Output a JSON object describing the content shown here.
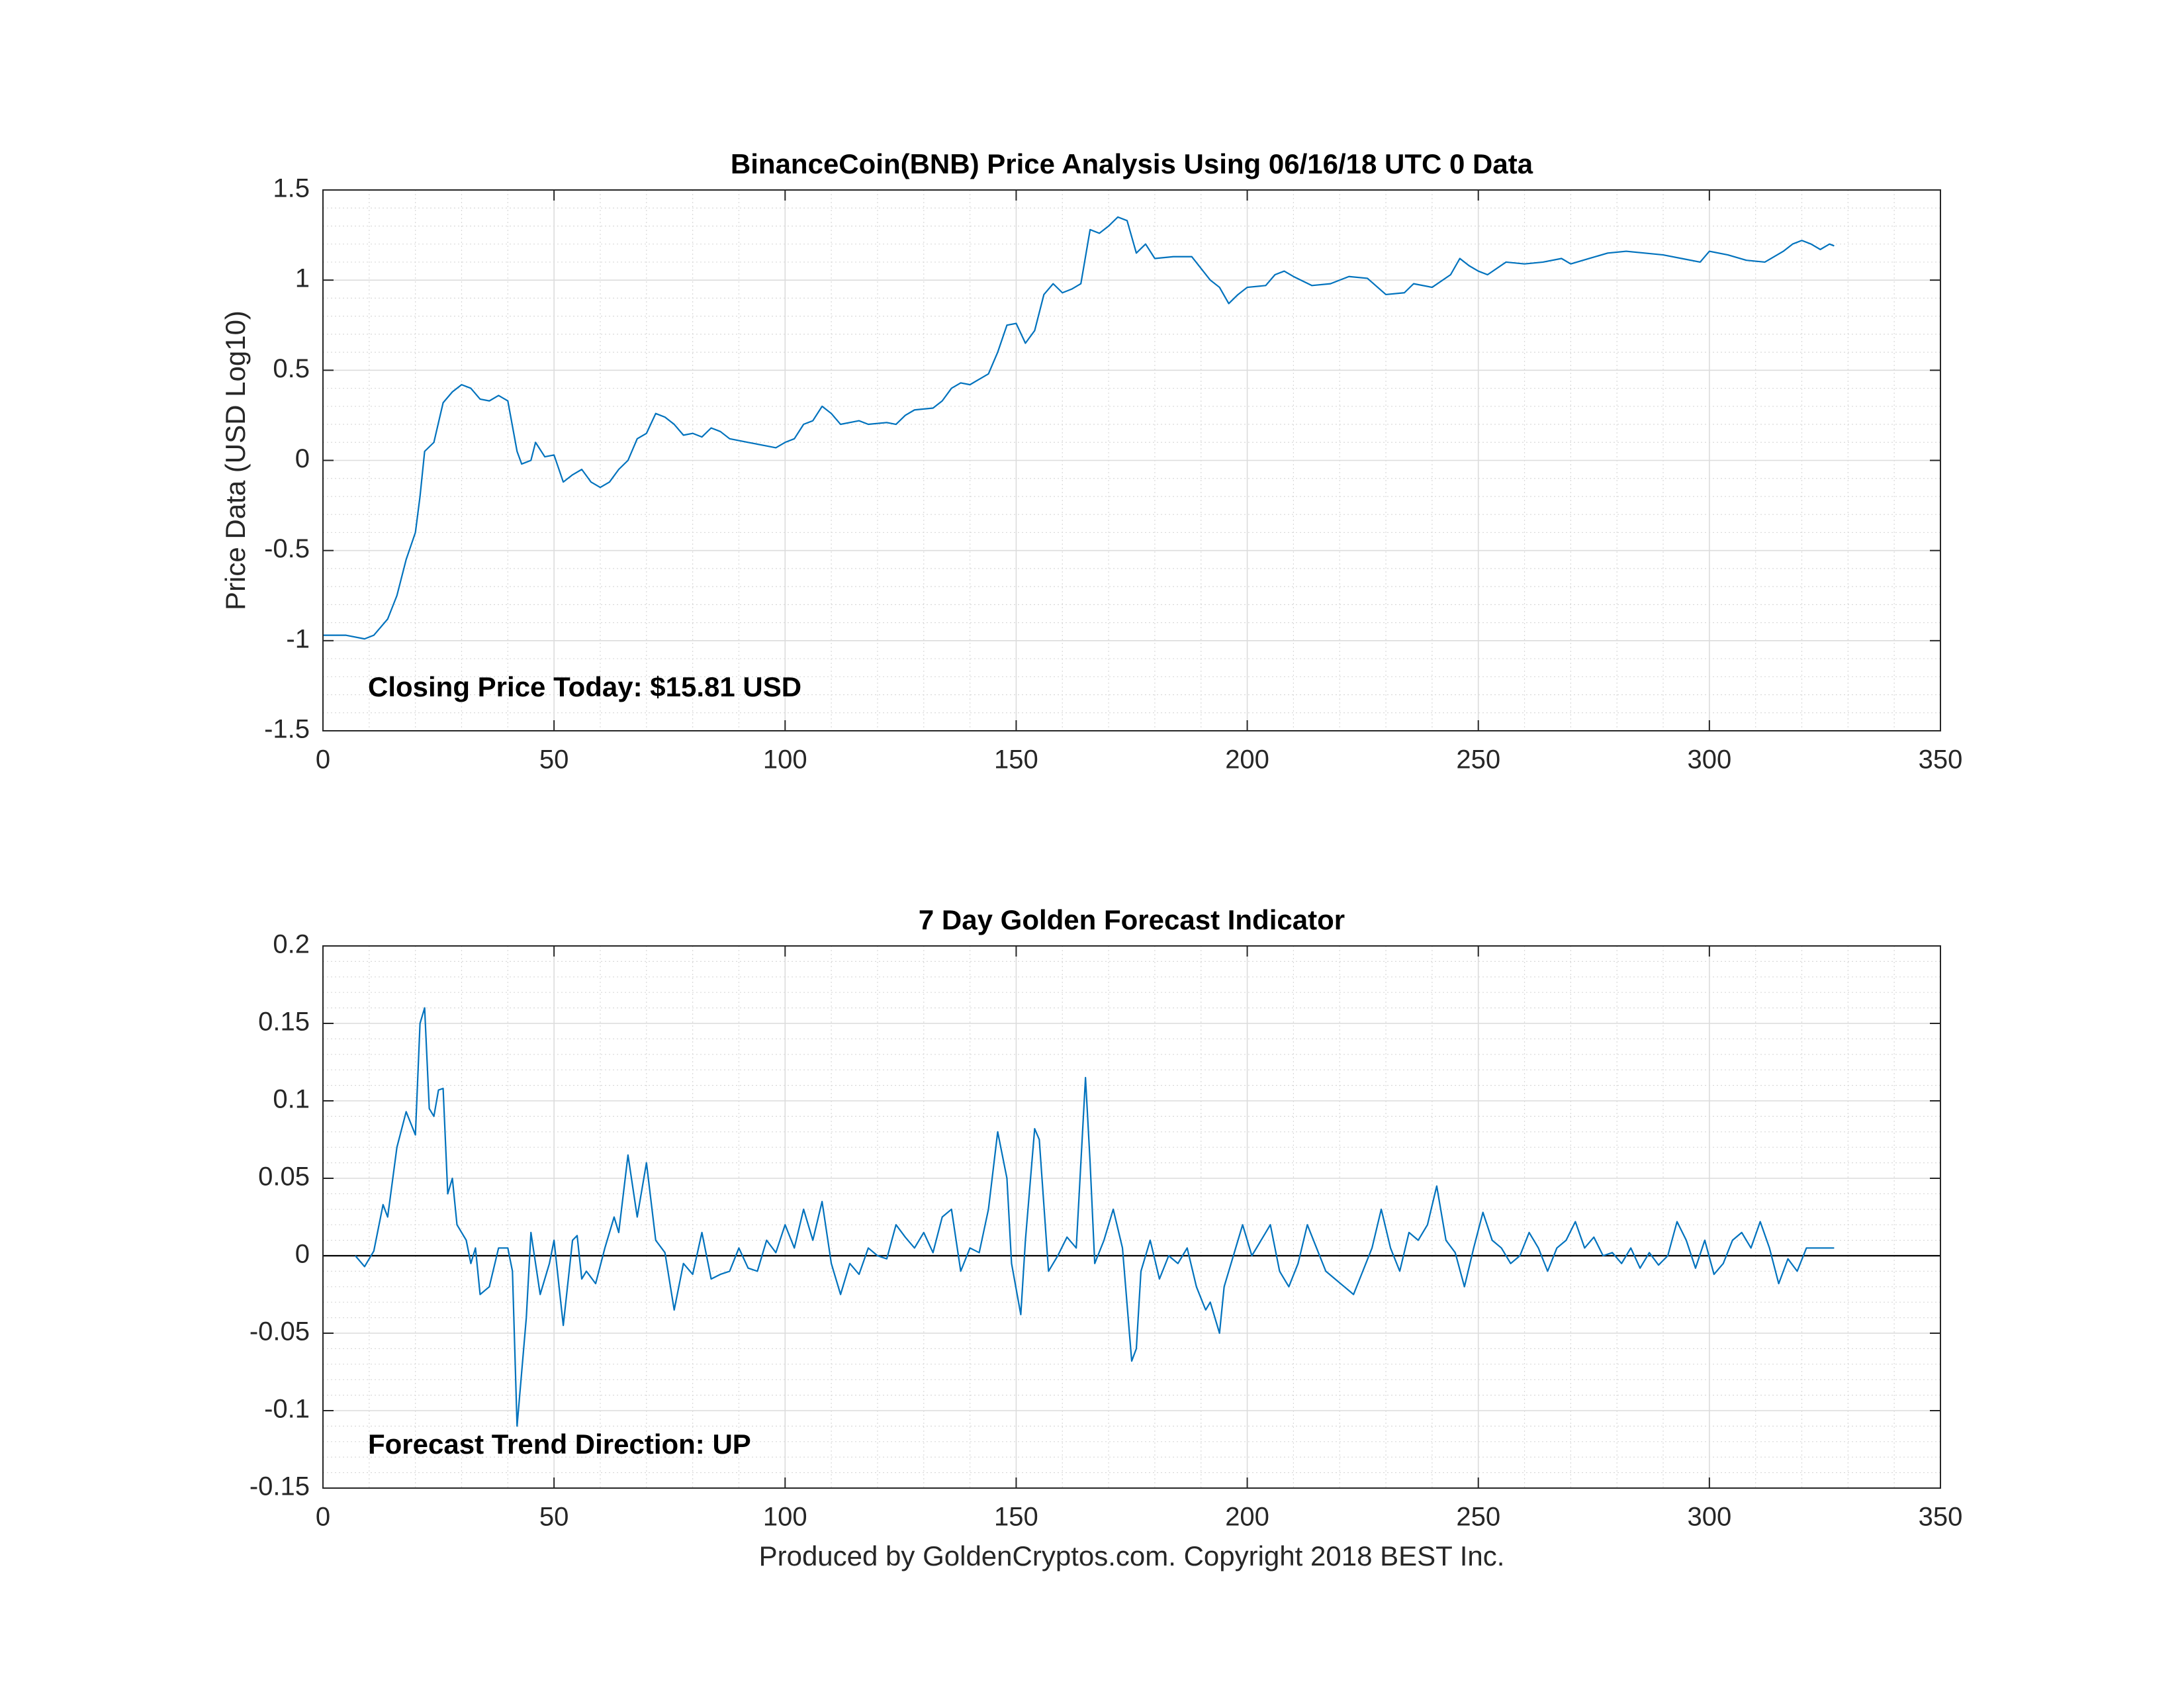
{
  "chart_data": [
    {
      "type": "line",
      "title": "BinanceCoin(BNB) Price Analysis Using 06/16/18 UTC 0 Data",
      "ylabel": "Price Data (USD Log10)",
      "annotation": "Closing Price Today: $15.81 USD",
      "color": "#0072bd",
      "grid": true,
      "minor_grid": true,
      "xlim": [
        0,
        350
      ],
      "xticks": [
        0,
        50,
        100,
        150,
        200,
        250,
        300,
        350
      ],
      "ylim": [
        -1.5,
        1.5
      ],
      "yticks": [
        -1.5,
        -1,
        -0.5,
        0,
        0.5,
        1,
        1.5
      ],
      "x": [
        0,
        5,
        9,
        11,
        14,
        16,
        18,
        20,
        21,
        22,
        24,
        26,
        28,
        30,
        32,
        34,
        36,
        38,
        40,
        42,
        43,
        45,
        46,
        48,
        50,
        52,
        54,
        56,
        58,
        60,
        62,
        64,
        66,
        68,
        70,
        72,
        74,
        76,
        78,
        80,
        82,
        84,
        86,
        88,
        92,
        96,
        98,
        100,
        102,
        104,
        106,
        108,
        110,
        112,
        116,
        118,
        122,
        124,
        126,
        128,
        132,
        134,
        136,
        138,
        140,
        142,
        144,
        146,
        148,
        150,
        152,
        154,
        156,
        158,
        160,
        162,
        164,
        166,
        168,
        170,
        172,
        174,
        176,
        178,
        180,
        184,
        188,
        192,
        194,
        196,
        198,
        200,
        204,
        206,
        208,
        210,
        214,
        218,
        222,
        226,
        230,
        234,
        236,
        240,
        244,
        246,
        248,
        250,
        252,
        256,
        260,
        264,
        268,
        270,
        274,
        278,
        282,
        286,
        290,
        294,
        298,
        300,
        304,
        308,
        312,
        316,
        318,
        320,
        322,
        324,
        326,
        327
      ],
      "values": [
        -0.97,
        -0.97,
        -0.99,
        -0.97,
        -0.88,
        -0.75,
        -0.55,
        -0.4,
        -0.2,
        0.05,
        0.1,
        0.32,
        0.38,
        0.42,
        0.4,
        0.34,
        0.33,
        0.36,
        0.33,
        0.05,
        -0.02,
        0.0,
        0.1,
        0.02,
        0.03,
        -0.12,
        -0.08,
        -0.05,
        -0.12,
        -0.15,
        -0.12,
        -0.05,
        0.0,
        0.12,
        0.15,
        0.26,
        0.24,
        0.2,
        0.14,
        0.15,
        0.13,
        0.18,
        0.16,
        0.12,
        0.1,
        0.08,
        0.07,
        0.1,
        0.12,
        0.2,
        0.22,
        0.3,
        0.26,
        0.2,
        0.22,
        0.2,
        0.21,
        0.2,
        0.25,
        0.28,
        0.29,
        0.33,
        0.4,
        0.43,
        0.42,
        0.45,
        0.48,
        0.6,
        0.75,
        0.76,
        0.65,
        0.72,
        0.92,
        0.98,
        0.93,
        0.95,
        0.98,
        1.28,
        1.26,
        1.3,
        1.35,
        1.33,
        1.15,
        1.2,
        1.12,
        1.13,
        1.13,
        1.0,
        0.96,
        0.87,
        0.92,
        0.96,
        0.97,
        1.03,
        1.05,
        1.02,
        0.97,
        0.98,
        1.02,
        1.01,
        0.92,
        0.93,
        0.98,
        0.96,
        1.03,
        1.12,
        1.08,
        1.05,
        1.03,
        1.1,
        1.09,
        1.1,
        1.12,
        1.09,
        1.12,
        1.15,
        1.16,
        1.15,
        1.14,
        1.12,
        1.1,
        1.16,
        1.14,
        1.11,
        1.1,
        1.16,
        1.2,
        1.22,
        1.2,
        1.17,
        1.2,
        1.19
      ]
    },
    {
      "type": "line",
      "title": "7 Day Golden Forecast Indicator",
      "xlabel": "Produced by GoldenCryptos.com. Copyright 2018 BEST Inc.",
      "annotation": "Forecast Trend Direction: UP",
      "color": "#0072bd",
      "grid": true,
      "minor_grid": true,
      "reference_line": {
        "y": 0,
        "color": "#000000"
      },
      "xlim": [
        0,
        350
      ],
      "xticks": [
        0,
        50,
        100,
        150,
        200,
        250,
        300,
        350
      ],
      "ylim": [
        -0.15,
        0.2
      ],
      "yticks": [
        -0.15,
        -0.1,
        -0.05,
        0,
        0.05,
        0.1,
        0.15,
        0.2
      ],
      "x": [
        7,
        9,
        11,
        13,
        14,
        16,
        18,
        20,
        21,
        22,
        23,
        24,
        25,
        26,
        27,
        28,
        29,
        31,
        32,
        33,
        34,
        36,
        38,
        40,
        41,
        42,
        44,
        45,
        47,
        49,
        50,
        52,
        54,
        55,
        56,
        57,
        59,
        61,
        63,
        64,
        66,
        68,
        70,
        72,
        74,
        76,
        78,
        80,
        82,
        84,
        86,
        88,
        90,
        92,
        94,
        96,
        98,
        100,
        102,
        104,
        106,
        108,
        110,
        112,
        114,
        116,
        118,
        120,
        122,
        124,
        126,
        128,
        130,
        132,
        134,
        136,
        138,
        140,
        142,
        144,
        146,
        148,
        149,
        151,
        152,
        154,
        155,
        157,
        159,
        161,
        163,
        165,
        166,
        167,
        169,
        171,
        173,
        175,
        176,
        177,
        179,
        181,
        183,
        185,
        187,
        189,
        191,
        192,
        194,
        195,
        197,
        199,
        201,
        203,
        205,
        207,
        209,
        211,
        213,
        215,
        217,
        219,
        221,
        223,
        225,
        227,
        229,
        231,
        233,
        235,
        237,
        239,
        241,
        243,
        245,
        247,
        249,
        251,
        253,
        255,
        257,
        259,
        261,
        263,
        265,
        267,
        269,
        271,
        273,
        275,
        277,
        279,
        281,
        283,
        285,
        287,
        289,
        291,
        293,
        295,
        297,
        299,
        301,
        303,
        305,
        307,
        309,
        311,
        313,
        315,
        317,
        319,
        321,
        327
      ],
      "values": [
        0,
        -0.007,
        0.003,
        0.033,
        0.025,
        0.07,
        0.093,
        0.078,
        0.15,
        0.16,
        0.095,
        0.09,
        0.107,
        0.108,
        0.04,
        0.05,
        0.02,
        0.01,
        -0.005,
        0.005,
        -0.025,
        -0.02,
        0.005,
        0.005,
        -0.01,
        -0.11,
        -0.04,
        0.015,
        -0.025,
        -0.005,
        0.01,
        -0.045,
        0.01,
        0.013,
        -0.015,
        -0.01,
        -0.018,
        0.005,
        0.025,
        0.015,
        0.065,
        0.025,
        0.06,
        0.01,
        0.002,
        -0.035,
        -0.005,
        -0.012,
        0.015,
        -0.015,
        -0.012,
        -0.01,
        0.005,
        -0.008,
        -0.01,
        0.01,
        0.002,
        0.02,
        0.005,
        0.03,
        0.01,
        0.035,
        -0.005,
        -0.025,
        -0.005,
        -0.012,
        0.005,
        0.0,
        -0.002,
        0.02,
        0.012,
        0.005,
        0.015,
        0.002,
        0.025,
        0.03,
        -0.01,
        0.005,
        0.002,
        0.03,
        0.08,
        0.05,
        -0.005,
        -0.038,
        0.01,
        0.082,
        0.075,
        -0.01,
        0.0,
        0.012,
        0.005,
        0.115,
        0.06,
        -0.005,
        0.01,
        0.03,
        0.005,
        -0.068,
        -0.06,
        -0.01,
        0.01,
        -0.015,
        0.0,
        -0.005,
        0.005,
        -0.02,
        -0.035,
        -0.03,
        -0.05,
        -0.02,
        0.0,
        0.02,
        0.0,
        0.01,
        0.02,
        -0.01,
        -0.02,
        -0.005,
        0.02,
        0.005,
        -0.01,
        -0.015,
        -0.02,
        -0.025,
        -0.01,
        0.005,
        0.03,
        0.005,
        -0.01,
        0.015,
        0.01,
        0.02,
        0.045,
        0.01,
        0.002,
        -0.02,
        0.005,
        0.028,
        0.01,
        0.005,
        -0.005,
        0.0,
        0.015,
        0.005,
        -0.01,
        0.005,
        0.01,
        0.022,
        0.005,
        0.012,
        0.0,
        0.002,
        -0.005,
        0.005,
        -0.008,
        0.002,
        -0.006,
        0.0,
        0.022,
        0.01,
        -0.008,
        0.01,
        -0.012,
        -0.005,
        0.01,
        0.015,
        0.005,
        0.022,
        0.005,
        -0.018,
        -0.002,
        -0.01,
        0.005,
        0.005
      ]
    }
  ]
}
